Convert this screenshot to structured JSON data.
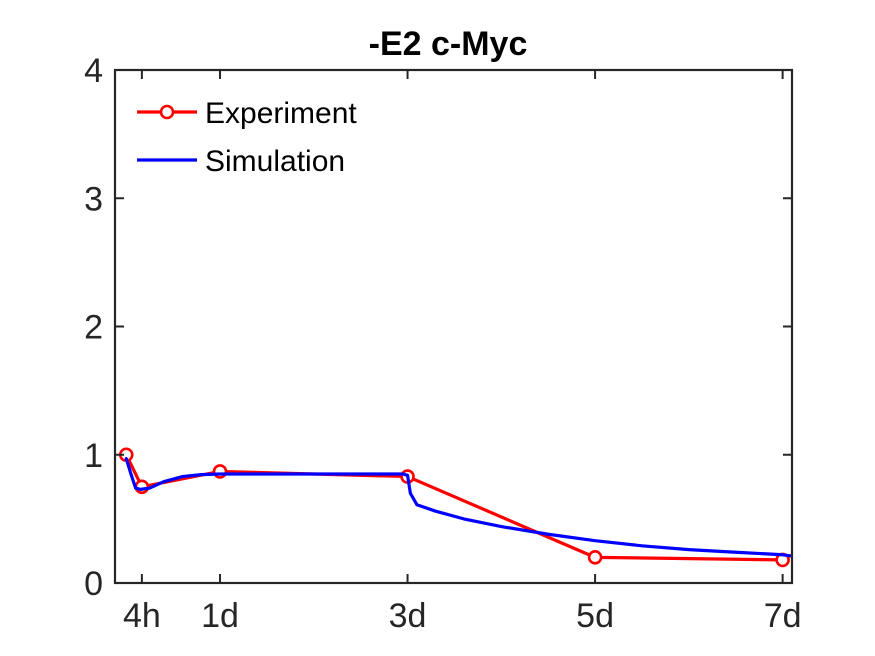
{
  "chart_data": {
    "type": "line",
    "title": "-E2 c-Myc",
    "xlabel": "",
    "ylabel": "",
    "xlim": [
      -0.12,
      7.1
    ],
    "ylim": [
      0,
      4
    ],
    "x_ticks": [
      {
        "value": 0.1667,
        "label": "4h"
      },
      {
        "value": 1,
        "label": "1d"
      },
      {
        "value": 3,
        "label": "3d"
      },
      {
        "value": 5,
        "label": "5d"
      },
      {
        "value": 7,
        "label": "7d"
      }
    ],
    "y_ticks": [
      {
        "value": 0,
        "label": "0"
      },
      {
        "value": 1,
        "label": "1"
      },
      {
        "value": 2,
        "label": "2"
      },
      {
        "value": 3,
        "label": "3"
      },
      {
        "value": 4,
        "label": "4"
      }
    ],
    "grid": false,
    "legend_position": "top-left",
    "series": [
      {
        "name": "Experiment",
        "color": "#ff0000",
        "marker": "circle",
        "x": [
          0,
          0.1667,
          1,
          3,
          5,
          7
        ],
        "y": [
          1.0,
          0.75,
          0.87,
          0.83,
          0.2,
          0.18
        ]
      },
      {
        "name": "Simulation",
        "color": "#0000ff",
        "marker": "none",
        "x": [
          0,
          0.05,
          0.1,
          0.15,
          0.25,
          0.4,
          0.6,
          0.8,
          1.0,
          1.5,
          2.0,
          2.5,
          2.95,
          3.0,
          3.03,
          3.1,
          3.3,
          3.6,
          4.0,
          4.5,
          5.0,
          5.5,
          6.0,
          6.5,
          7.0,
          7.1
        ],
        "y": [
          0.97,
          0.85,
          0.74,
          0.73,
          0.74,
          0.79,
          0.83,
          0.845,
          0.85,
          0.85,
          0.85,
          0.85,
          0.85,
          0.84,
          0.7,
          0.61,
          0.56,
          0.5,
          0.44,
          0.38,
          0.33,
          0.29,
          0.26,
          0.24,
          0.22,
          0.21
        ]
      }
    ]
  }
}
